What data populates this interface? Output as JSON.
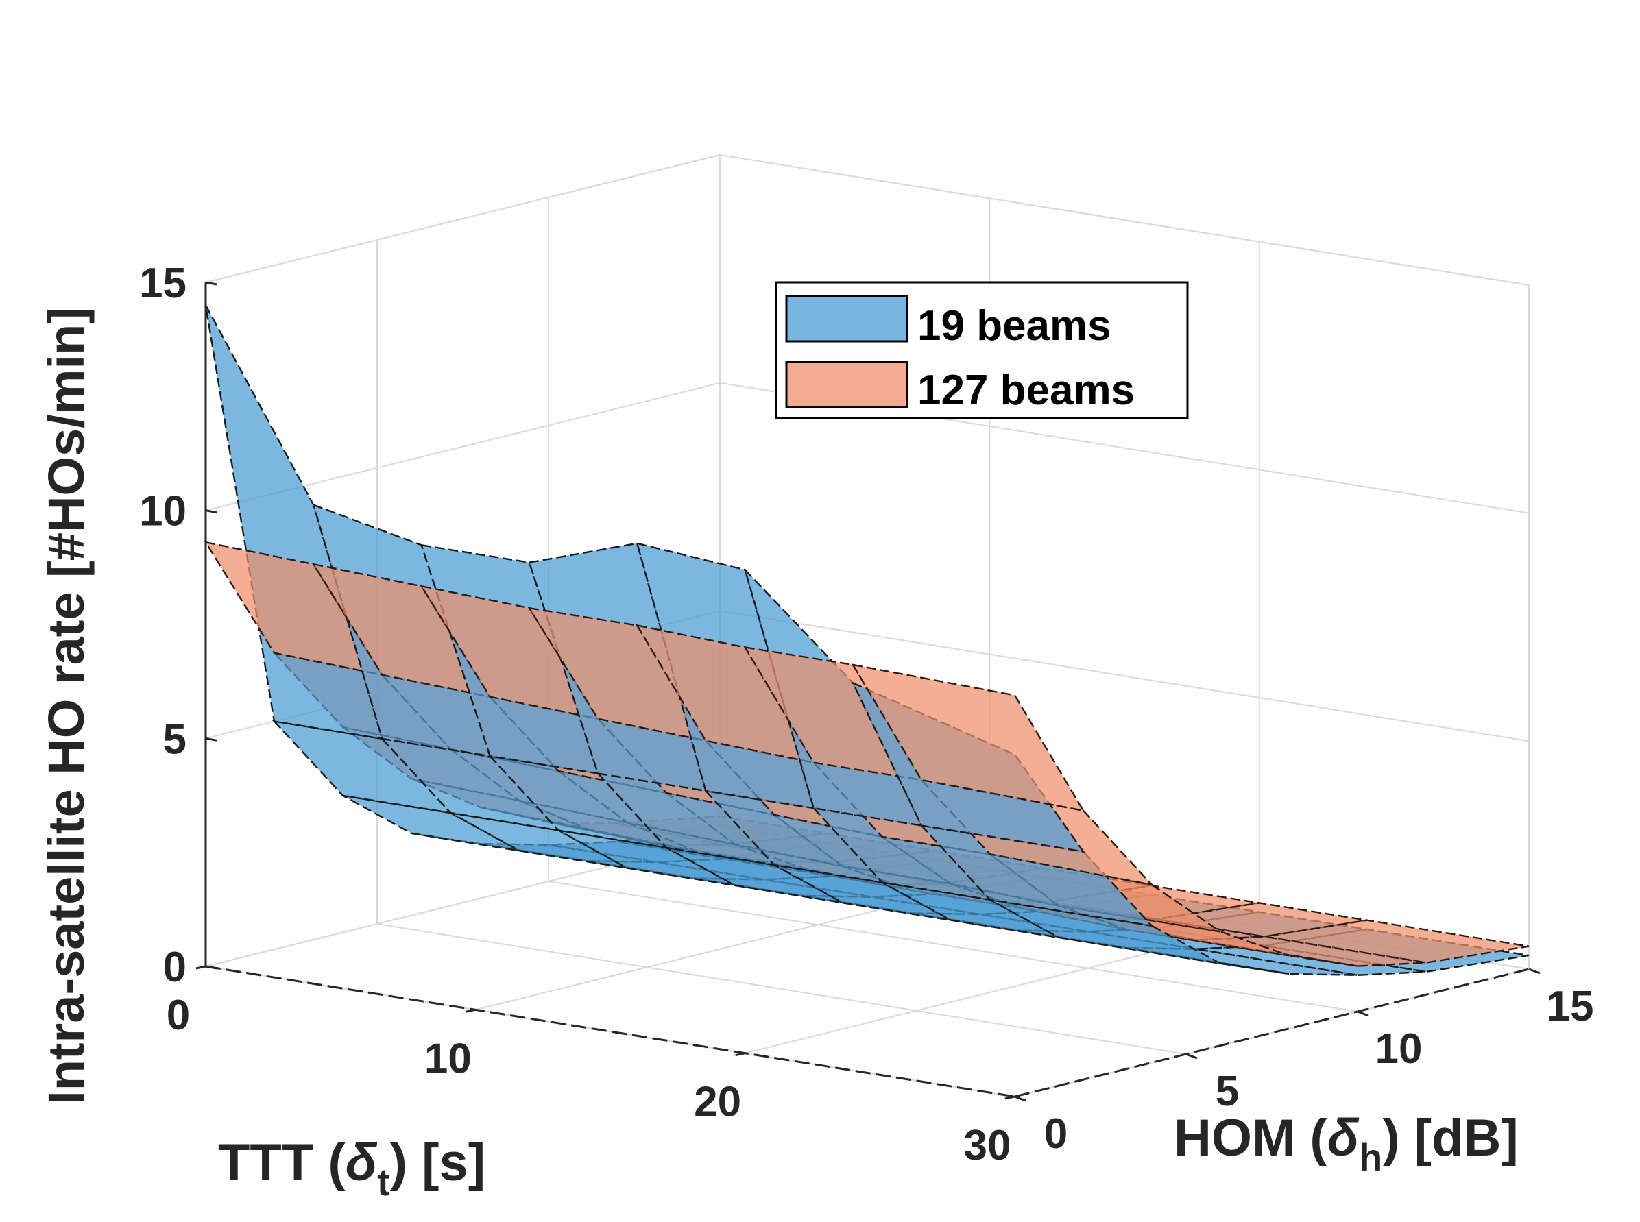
{
  "chart_data": {
    "type": "surface",
    "title": "",
    "xlabel": {
      "text": "TTT (",
      "symbol": "δ",
      "sub": "t",
      "suffix": ") [s]"
    },
    "ylabel": {
      "text": "HOM (",
      "symbol": "δ",
      "sub": "h",
      "suffix": ") [dB]"
    },
    "zlabel": "Intra-satellite HO rate [#HOs/min]",
    "xlim": [
      0,
      30
    ],
    "ylim": [
      0,
      15
    ],
    "zlim": [
      0,
      15
    ],
    "xticks": [
      "0",
      "10",
      "20",
      "30"
    ],
    "yticks": [
      "0",
      "5",
      "10",
      "15"
    ],
    "zticks": [
      "0",
      "5",
      "10",
      "15"
    ],
    "grid": true,
    "legend_position": "top-right",
    "x": [
      0,
      4,
      8,
      12,
      16,
      20,
      24,
      30
    ],
    "y": [
      0,
      2,
      4,
      6,
      8,
      10,
      12,
      15
    ],
    "series": [
      {
        "name": "19 beams",
        "color": "#4a9bd4",
        "z": [
          [
            14.5,
            10.5,
            10.0,
            10.0,
            10.8,
            10.6,
            8.5,
            7.5
          ],
          [
            5.0,
            5.0,
            5.0,
            5.0,
            5.0,
            5.0,
            5.0,
            5.0
          ],
          [
            3.0,
            3.0,
            3.0,
            3.0,
            3.0,
            3.0,
            3.0,
            3.0
          ],
          [
            1.8,
            1.8,
            1.8,
            1.8,
            1.8,
            1.8,
            1.8,
            1.8
          ],
          [
            1.2,
            1.2,
            1.2,
            1.2,
            1.2,
            1.2,
            1.2,
            1.2
          ],
          [
            0.8,
            0.8,
            0.8,
            0.8,
            0.8,
            0.8,
            0.8,
            0.8
          ],
          [
            0.5,
            0.5,
            0.5,
            0.5,
            0.5,
            0.5,
            0.5,
            0.5
          ],
          [
            0.3,
            0.3,
            0.3,
            0.3,
            0.3,
            0.3,
            0.3,
            0.3
          ]
        ]
      },
      {
        "name": "127 beams",
        "color": "#ee8f6b",
        "z": [
          [
            9.3,
            9.2,
            9.1,
            9.0,
            9.0,
            8.9,
            8.9,
            8.8
          ],
          [
            6.5,
            6.4,
            6.3,
            6.2,
            6.1,
            6.0,
            6.0,
            5.9
          ],
          [
            4.5,
            4.4,
            4.3,
            4.2,
            4.1,
            4.0,
            4.0,
            3.9
          ],
          [
            3.0,
            2.9,
            2.8,
            2.7,
            2.6,
            2.6,
            2.5,
            2.5
          ],
          [
            2.0,
            1.9,
            1.8,
            1.8,
            1.7,
            1.7,
            1.6,
            1.6
          ],
          [
            1.3,
            1.2,
            1.2,
            1.1,
            1.1,
            1.1,
            1.0,
            1.0
          ],
          [
            0.9,
            0.8,
            0.8,
            0.7,
            0.7,
            0.7,
            0.7,
            0.7
          ],
          [
            0.5,
            0.5,
            0.5,
            0.5,
            0.5,
            0.5,
            0.5,
            0.5
          ]
        ]
      }
    ]
  }
}
